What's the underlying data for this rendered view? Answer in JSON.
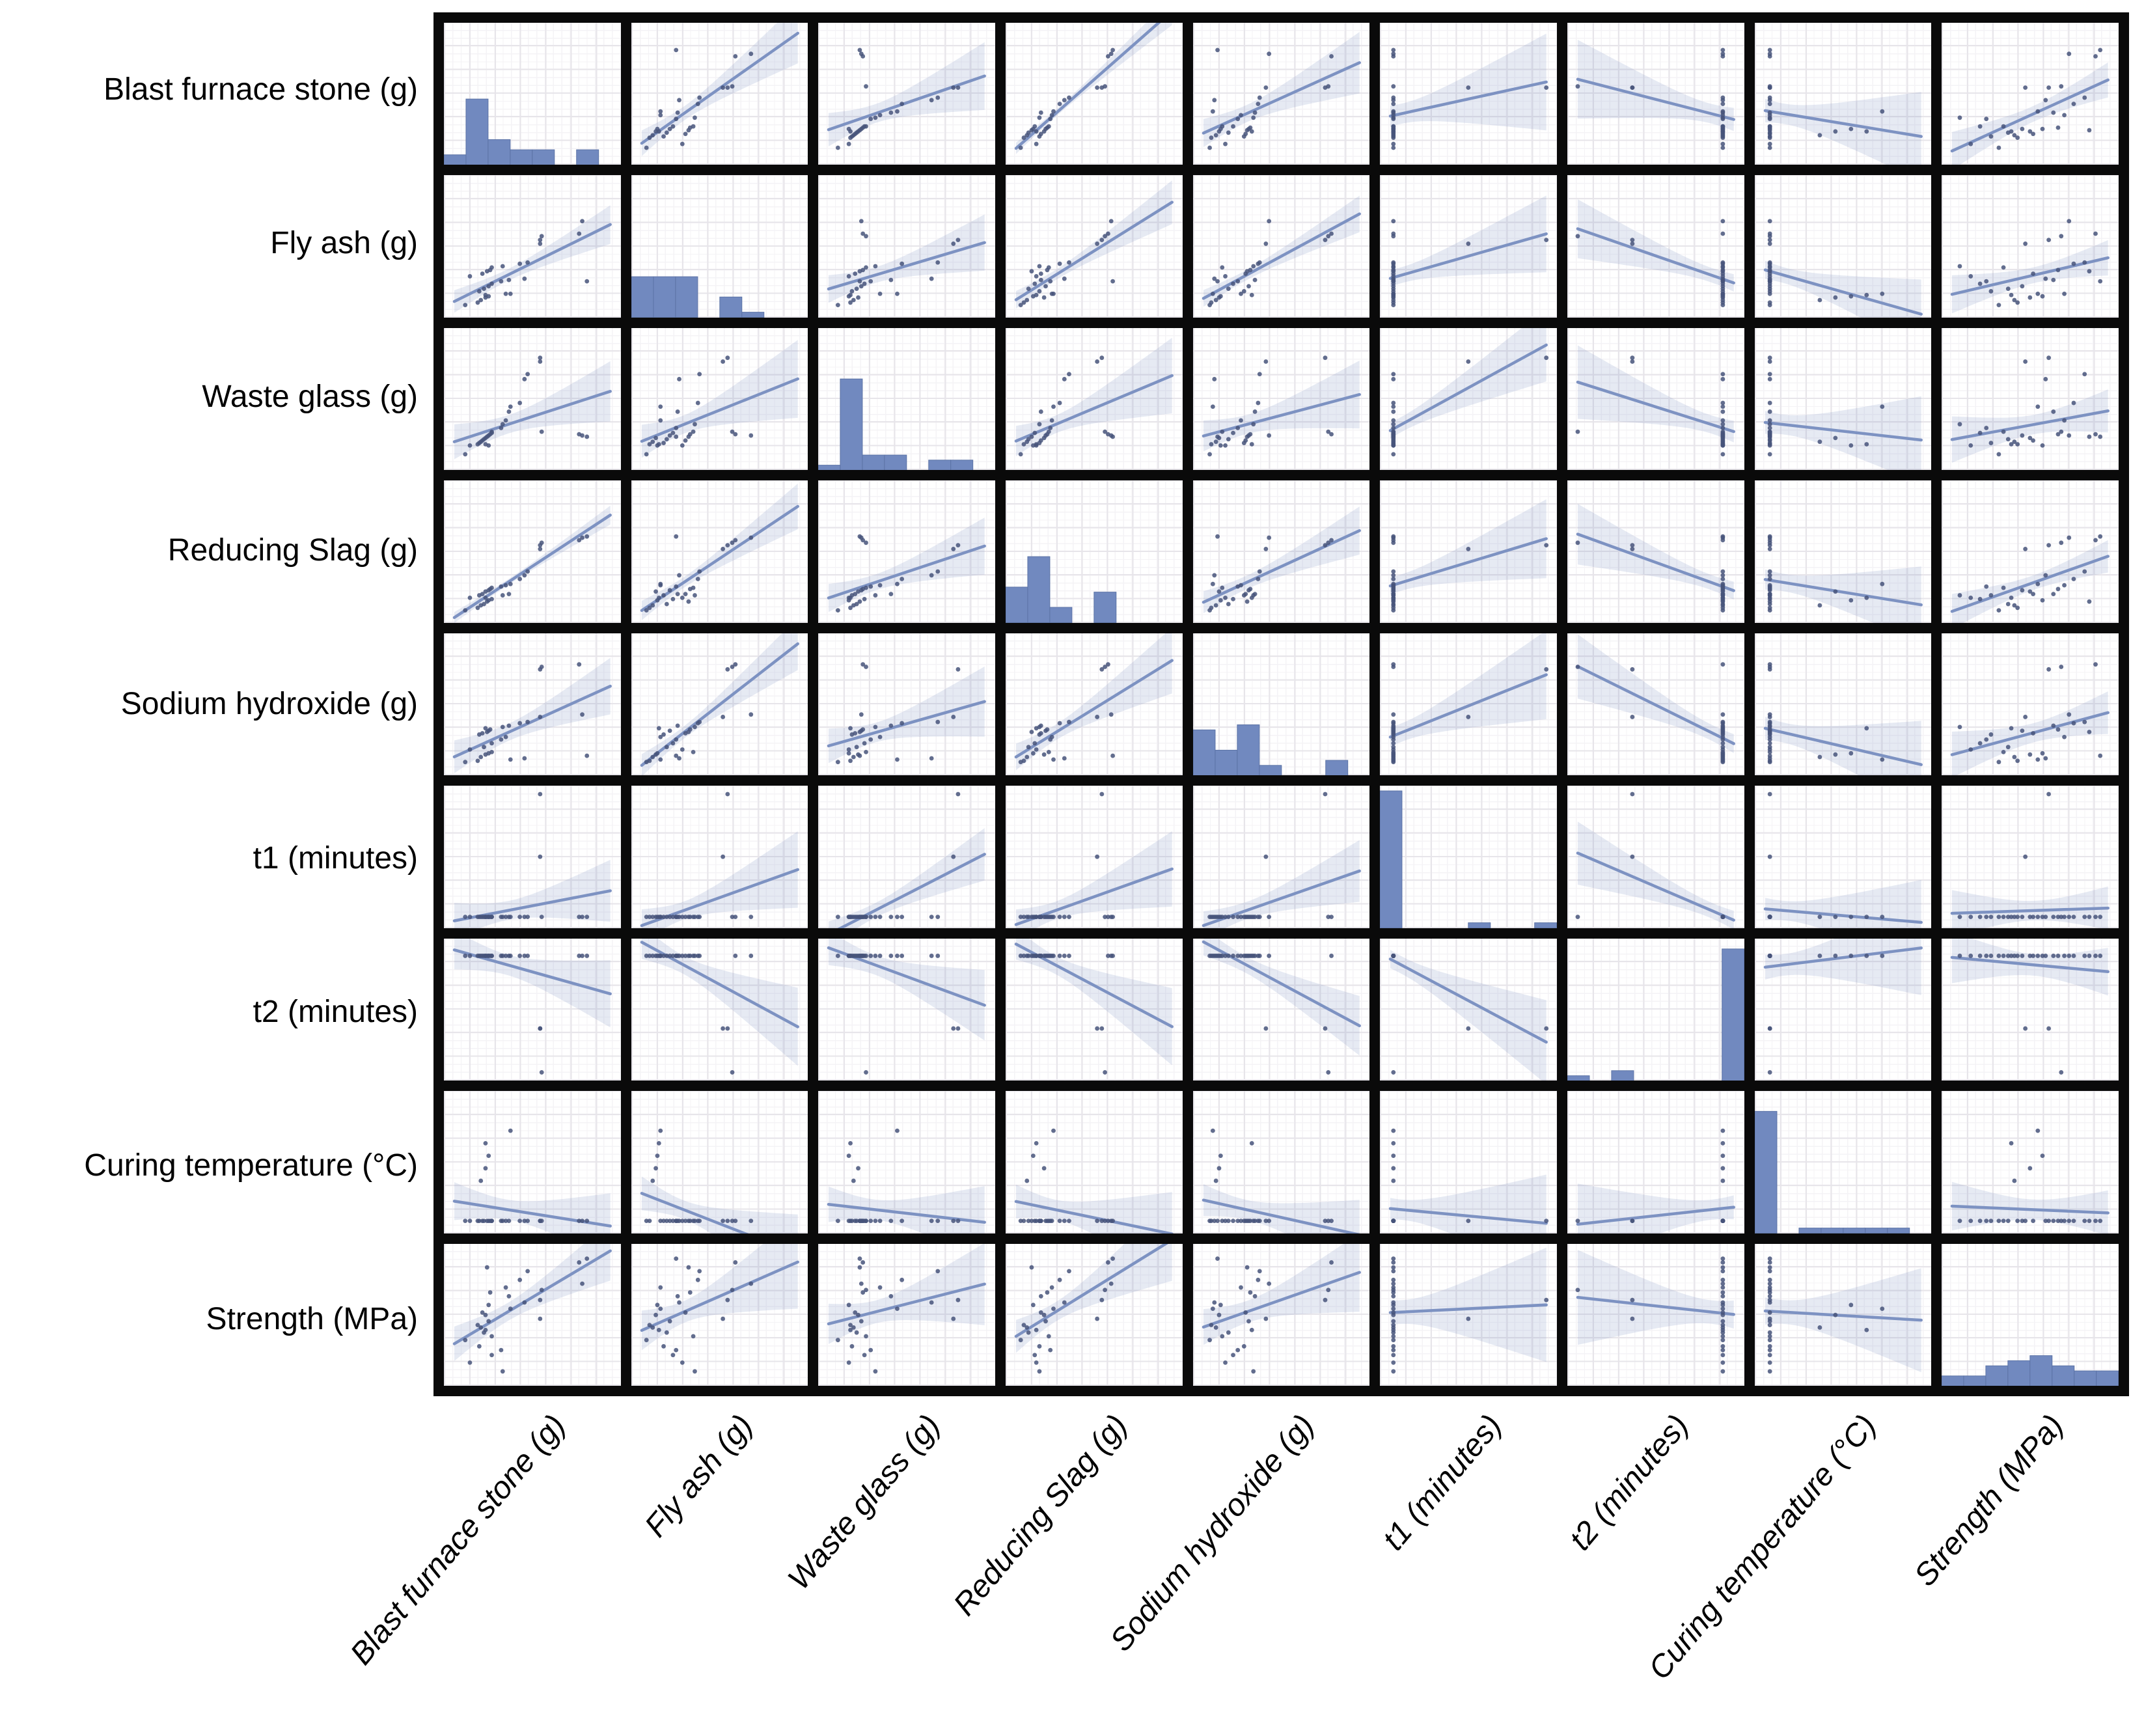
{
  "chart_data": {
    "type": "scatter_matrix",
    "diagonal": "histogram",
    "off_diagonal": "scatter with linear regression line and confidence band",
    "legend": "none",
    "axes": {
      "tick_labels_visible": false,
      "values_normalized_0_1": true
    },
    "histogram_bins": 8,
    "variables": [
      "Blast furnace stone (g)",
      "Fly ash (g)",
      "Waste glass (g)",
      "Reducing Slag (g)",
      "Sodium hydroxide (g)",
      "t1 (minutes)",
      "t2 (minutes)",
      "Curing temperature (°C)",
      "Strength (MPa)"
    ],
    "variable_keys": [
      "blast-furnace-stone",
      "fly-ash",
      "waste-glass",
      "reducing-slag",
      "sodium-hydroxide",
      "t1",
      "t2",
      "curing-temperature",
      "strength"
    ],
    "observations_normalized": [
      [
        0.07,
        0.03,
        0.06,
        0.03,
        0.04,
        0.02,
        0.93,
        0.03,
        0.3
      ],
      [
        0.1,
        0.26,
        0.13,
        0.13,
        0.14,
        0.02,
        0.93,
        0.03,
        0.12
      ],
      [
        0.15,
        0.05,
        0.14,
        0.05,
        0.05,
        0.02,
        0.93,
        0.03,
        0.42
      ],
      [
        0.16,
        0.14,
        0.15,
        0.15,
        0.26,
        0.02,
        0.93,
        0.03,
        0.25
      ],
      [
        0.17,
        0.07,
        0.16,
        0.07,
        0.08,
        0.02,
        0.93,
        0.35,
        0.4
      ],
      [
        0.18,
        0.28,
        0.17,
        0.16,
        0.27,
        0.02,
        0.93,
        0.03,
        0.52
      ],
      [
        0.19,
        0.16,
        0.18,
        0.08,
        0.16,
        0.02,
        0.93,
        0.03,
        0.36
      ],
      [
        0.2,
        0.09,
        0.19,
        0.18,
        0.1,
        0.02,
        0.93,
        0.45,
        0.5
      ],
      [
        0.21,
        0.3,
        0.2,
        0.1,
        0.28,
        0.02,
        0.93,
        0.03,
        0.88
      ],
      [
        0.22,
        0.18,
        0.21,
        0.19,
        0.29,
        0.02,
        0.93,
        0.03,
        0.45
      ],
      [
        0.22,
        0.1,
        0.13,
        0.11,
        0.11,
        0.02,
        0.93,
        0.55,
        0.58
      ],
      [
        0.23,
        0.31,
        0.22,
        0.2,
        0.3,
        0.02,
        0.93,
        0.03,
        0.68
      ],
      [
        0.24,
        0.2,
        0.23,
        0.12,
        0.19,
        0.02,
        0.93,
        0.03,
        0.18
      ],
      [
        0.24,
        0.33,
        0.24,
        0.21,
        0.12,
        0.02,
        0.93,
        0.03,
        0.33
      ],
      [
        0.2,
        0.11,
        0.14,
        0.13,
        0.31,
        0.02,
        0.93,
        0.65,
        0.38
      ],
      [
        0.3,
        0.22,
        0.27,
        0.22,
        0.22,
        0.02,
        0.93,
        0.03,
        0.22
      ],
      [
        0.31,
        0.34,
        0.3,
        0.15,
        0.32,
        0.02,
        0.93,
        0.03,
        0.05
      ],
      [
        0.33,
        0.12,
        0.33,
        0.23,
        0.24,
        0.02,
        0.93,
        0.03,
        0.72
      ],
      [
        0.35,
        0.23,
        0.4,
        0.16,
        0.33,
        0.02,
        0.93,
        0.03,
        0.65
      ],
      [
        0.36,
        0.12,
        0.44,
        0.24,
        0.06,
        0.02,
        0.93,
        0.75,
        0.55
      ],
      [
        0.42,
        0.36,
        0.47,
        0.28,
        0.35,
        0.02,
        0.93,
        0.03,
        0.78
      ],
      [
        0.45,
        0.24,
        0.66,
        0.31,
        0.07,
        0.02,
        0.93,
        0.03,
        0.6
      ],
      [
        0.47,
        0.37,
        0.7,
        0.34,
        0.36,
        0.02,
        0.93,
        0.03,
        0.85
      ],
      [
        0.55,
        0.52,
        0.8,
        0.52,
        0.4,
        0.5,
        0.35,
        0.03,
        0.47
      ],
      [
        0.55,
        0.55,
        0.83,
        0.55,
        0.78,
        1.0,
        0.35,
        0.03,
        0.62
      ],
      [
        0.56,
        0.58,
        0.24,
        0.57,
        0.8,
        0.02,
        0.0,
        0.03,
        0.7
      ],
      [
        0.8,
        0.6,
        0.22,
        0.59,
        0.82,
        0.02,
        0.93,
        0.03,
        0.92
      ],
      [
        0.82,
        0.7,
        0.21,
        0.61,
        0.42,
        0.02,
        0.93,
        0.03,
        0.75
      ],
      [
        0.85,
        0.22,
        0.2,
        0.62,
        0.09,
        0.02,
        0.93,
        0.03,
        0.95
      ]
    ]
  },
  "colors": {
    "point": "#47537a",
    "regression_line": "#7d92c2",
    "confidence_band": "rgba(140,160,200,0.22)",
    "histogram_fill": "#7189bf",
    "histogram_edge": "#5c73a6",
    "grid_major": "#e7e5ea",
    "grid_minor": "#f4f3f6",
    "cell_border": "#0a0a0a",
    "background": "#ffffff",
    "label_text": "#000000"
  }
}
